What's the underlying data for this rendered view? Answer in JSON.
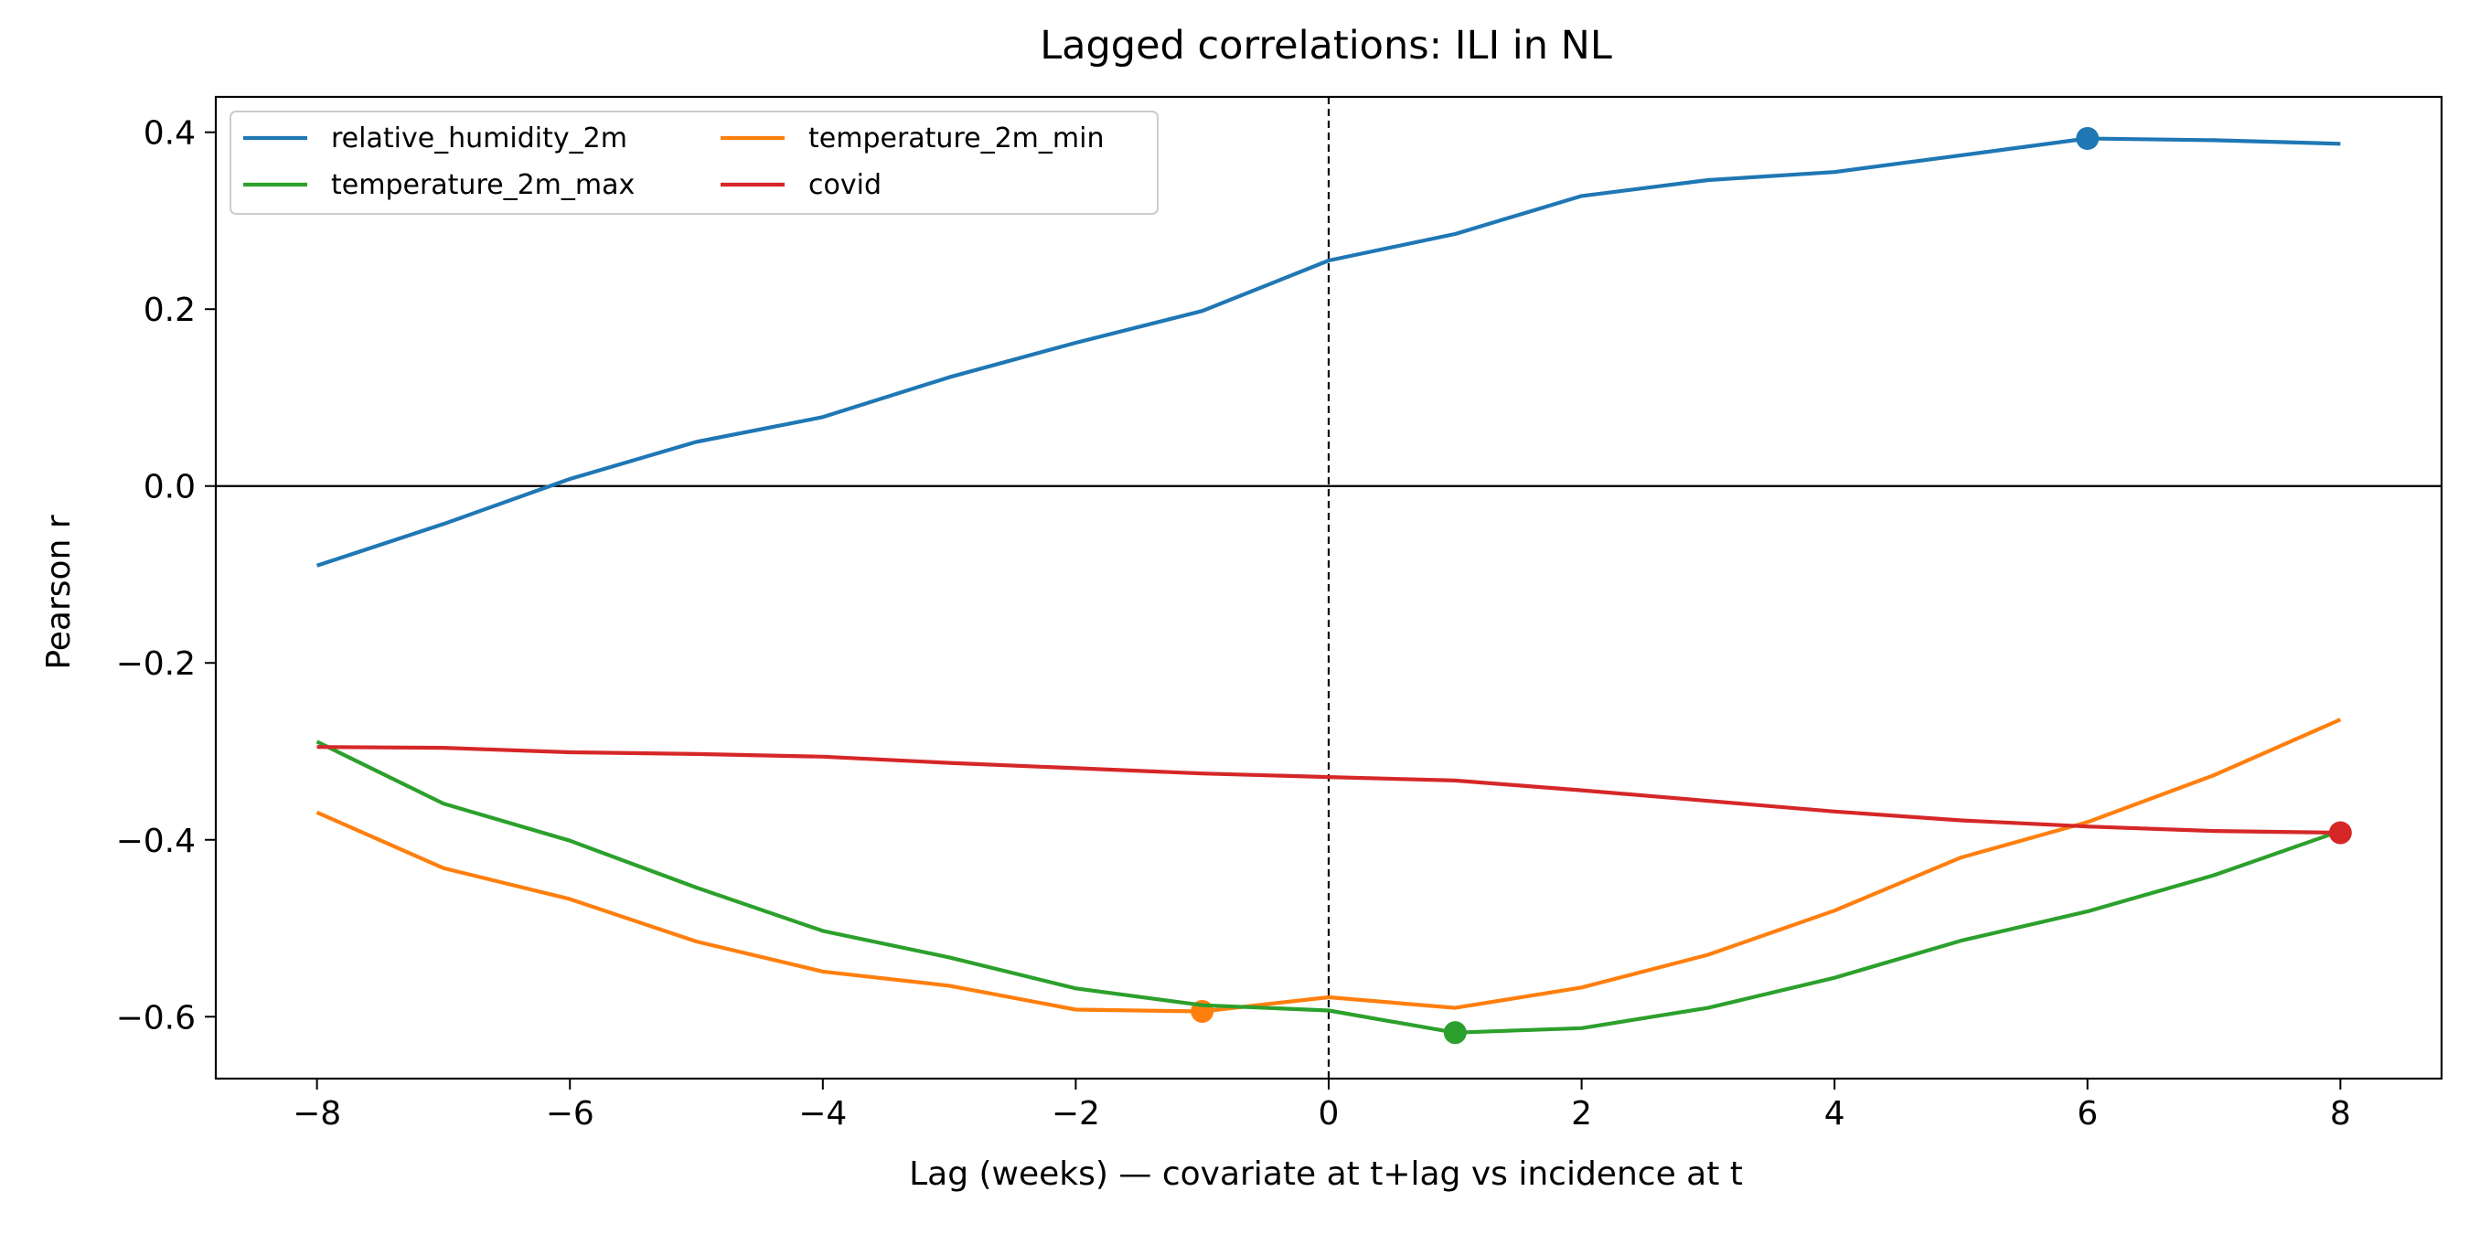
{
  "chart_data": {
    "type": "line",
    "title": "Lagged correlations: ILI in NL",
    "xlabel": "Lag (weeks) — covariate at t+lag vs incidence at t",
    "ylabel": "Pearson r",
    "xlim": [
      -8.8,
      8.8
    ],
    "ylim": [
      -0.67,
      0.44
    ],
    "x_ticks": [
      -8,
      -6,
      -4,
      -2,
      0,
      2,
      4,
      6,
      8
    ],
    "x_tick_labels": [
      "−8",
      "−6",
      "−4",
      "−2",
      "0",
      "2",
      "4",
      "6",
      "8"
    ],
    "y_ticks": [
      0.4,
      0.2,
      0.0,
      -0.2,
      -0.4,
      -0.6
    ],
    "y_tick_labels": [
      "0.4",
      "0.2",
      "0.0",
      "−0.2",
      "−0.4",
      "−0.6"
    ],
    "grid": false,
    "legend_position": "upper left",
    "legend_columns": 2,
    "reference_lines": {
      "horizontal_zero": true,
      "vertical_dashed_at_x": 0
    },
    "x": [
      -8,
      -7,
      -6,
      -5,
      -4,
      -3,
      -2,
      -1,
      0,
      1,
      2,
      3,
      4,
      5,
      6,
      7,
      8
    ],
    "series": [
      {
        "name": "relative_humidity_2m",
        "color": "#1f77b4",
        "values": [
          -0.09,
          -0.043,
          0.008,
          0.05,
          0.078,
          0.123,
          0.162,
          0.198,
          0.255,
          0.285,
          0.328,
          0.346,
          0.355,
          0.374,
          0.393,
          0.391,
          0.387
        ],
        "marker_x": 6
      },
      {
        "name": "temperature_2m_min",
        "color": "#ff7f0e",
        "values": [
          -0.369,
          -0.432,
          -0.467,
          -0.515,
          -0.549,
          -0.565,
          -0.592,
          -0.594,
          -0.578,
          -0.59,
          -0.567,
          -0.53,
          -0.48,
          -0.42,
          -0.38,
          -0.327,
          -0.264
        ],
        "marker_x": -1
      },
      {
        "name": "temperature_2m_max",
        "color": "#2ca02c",
        "values": [
          -0.289,
          -0.359,
          -0.401,
          -0.454,
          -0.503,
          -0.533,
          -0.568,
          -0.587,
          -0.593,
          -0.618,
          -0.613,
          -0.59,
          -0.556,
          -0.514,
          -0.481,
          -0.44,
          -0.39
        ],
        "marker_x": 1
      },
      {
        "name": "covid",
        "color": "#d62728",
        "values": [
          -0.295,
          -0.296,
          -0.301,
          -0.303,
          -0.306,
          -0.313,
          -0.319,
          -0.325,
          -0.329,
          -0.333,
          -0.344,
          -0.356,
          -0.368,
          -0.378,
          -0.385,
          -0.39,
          -0.392
        ],
        "marker_x": 8
      }
    ]
  }
}
